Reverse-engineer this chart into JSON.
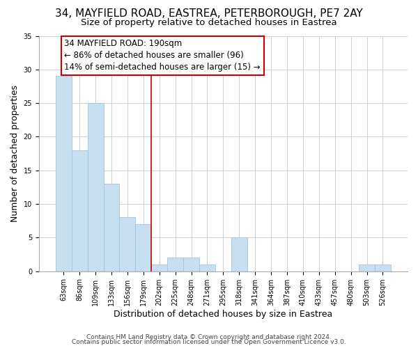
{
  "title_line1": "34, MAYFIELD ROAD, EASTREA, PETERBOROUGH, PE7 2AY",
  "title_line2": "Size of property relative to detached houses in Eastrea",
  "xlabel": "Distribution of detached houses by size in Eastrea",
  "ylabel": "Number of detached properties",
  "footer_line1": "Contains HM Land Registry data © Crown copyright and database right 2024.",
  "footer_line2": "Contains public sector information licensed under the Open Government Licence v3.0.",
  "bar_labels": [
    "63sqm",
    "86sqm",
    "109sqm",
    "133sqm",
    "156sqm",
    "179sqm",
    "202sqm",
    "225sqm",
    "248sqm",
    "271sqm",
    "295sqm",
    "318sqm",
    "341sqm",
    "364sqm",
    "387sqm",
    "410sqm",
    "433sqm",
    "457sqm",
    "480sqm",
    "503sqm",
    "526sqm"
  ],
  "bar_values": [
    29,
    18,
    25,
    13,
    8,
    7,
    1,
    2,
    2,
    1,
    0,
    5,
    0,
    0,
    0,
    0,
    0,
    0,
    0,
    1,
    1
  ],
  "bar_color": "#c8dff0",
  "bar_edge_color": "#9fc5e0",
  "grid_color": "#d0d0d0",
  "vline_color": "#cc0000",
  "annotation_text": "34 MAYFIELD ROAD: 190sqm\n← 86% of detached houses are smaller (96)\n14% of semi-detached houses are larger (15) →",
  "annotation_box_color": "#ffffff",
  "annotation_box_edge": "#cc0000",
  "ylim": [
    0,
    35
  ],
  "yticks": [
    0,
    5,
    10,
    15,
    20,
    25,
    30,
    35
  ],
  "background_color": "#ffffff",
  "title_fontsize": 11,
  "subtitle_fontsize": 9.5,
  "annotation_fontsize": 8.5,
  "xlabel_fontsize": 9,
  "ylabel_fontsize": 9,
  "footer_fontsize": 6.5,
  "tick_fontsize": 7
}
